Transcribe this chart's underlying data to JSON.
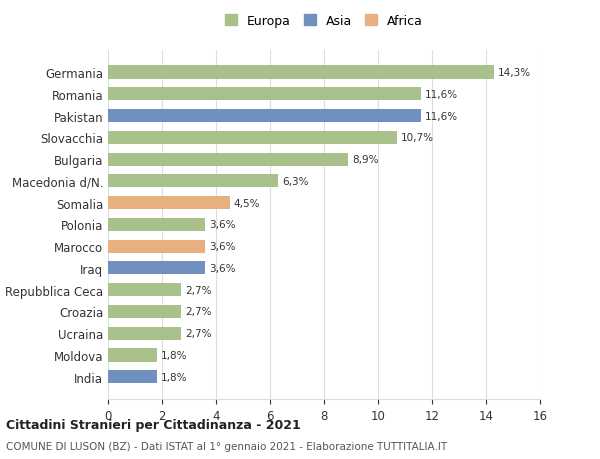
{
  "countries": [
    "Germania",
    "Romania",
    "Pakistan",
    "Slovacchia",
    "Bulgaria",
    "Macedonia d/N.",
    "Somalia",
    "Polonia",
    "Marocco",
    "Iraq",
    "Repubblica Ceca",
    "Croazia",
    "Ucraina",
    "Moldova",
    "India"
  ],
  "values": [
    14.3,
    11.6,
    11.6,
    10.7,
    8.9,
    6.3,
    4.5,
    3.6,
    3.6,
    3.6,
    2.7,
    2.7,
    2.7,
    1.8,
    1.8
  ],
  "labels": [
    "14,3%",
    "11,6%",
    "11,6%",
    "10,7%",
    "8,9%",
    "6,3%",
    "4,5%",
    "3,6%",
    "3,6%",
    "3,6%",
    "2,7%",
    "2,7%",
    "2,7%",
    "1,8%",
    "1,8%"
  ],
  "continents": [
    "Europa",
    "Europa",
    "Asia",
    "Europa",
    "Europa",
    "Europa",
    "Africa",
    "Europa",
    "Africa",
    "Asia",
    "Europa",
    "Europa",
    "Europa",
    "Europa",
    "Asia"
  ],
  "colors": {
    "Europa": "#a8c08a",
    "Asia": "#7090c0",
    "Africa": "#e8b080"
  },
  "legend_labels": [
    "Europa",
    "Asia",
    "Africa"
  ],
  "title_bold": "Cittadini Stranieri per Cittadinanza - 2021",
  "subtitle": "COMUNE DI LUSON (BZ) - Dati ISTAT al 1° gennaio 2021 - Elaborazione TUTTITALIA.IT",
  "xlim": [
    0,
    16
  ],
  "xticks": [
    0,
    2,
    4,
    6,
    8,
    10,
    12,
    14,
    16
  ],
  "background_color": "#ffffff",
  "grid_color": "#dddddd",
  "bar_height": 0.6
}
